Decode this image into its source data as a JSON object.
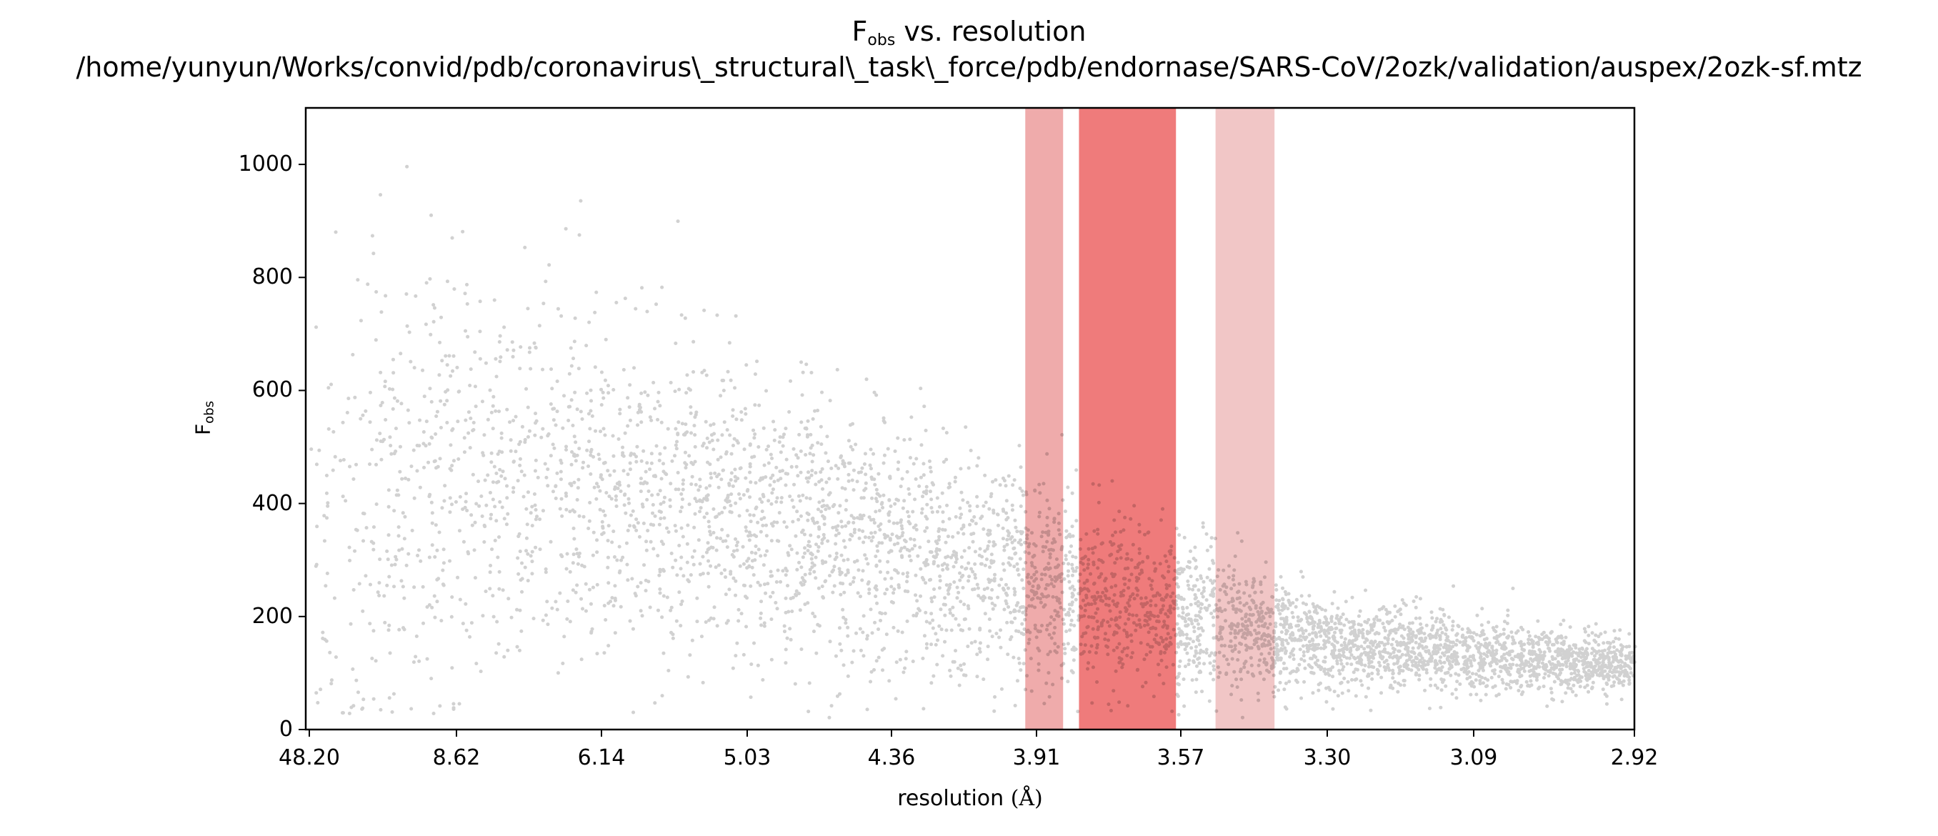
{
  "chart_data": {
    "type": "scatter",
    "title_main": "F",
    "title_main_sub": "obs",
    "title_main_rest": " vs. resolution",
    "title_path": "/home/yunyun/Works/convid/pdb/coronavirus\\_structural\\_task\\_force/pdb/endornase/SARS-CoV/2ozk/validation/auspex/2ozk-sf.mtz",
    "xlabel": "resolution ",
    "xlabel_unit": "(Å)",
    "ylabel": "F",
    "ylabel_sub": "obs",
    "x_scale": "reciprocal-squared (1/d²)",
    "x_ticks": [
      "48.20",
      "8.62",
      "6.14",
      "5.03",
      "4.36",
      "3.91",
      "3.57",
      "3.30",
      "3.09",
      "2.92"
    ],
    "y_ticks": [
      "0",
      "200",
      "400",
      "600",
      "800",
      "1000"
    ],
    "xlim": [
      48.2,
      2.92
    ],
    "ylim": [
      0,
      1100
    ],
    "grid": false,
    "point_color": "#000000",
    "ice_ring_bands": [
      {
        "from": 3.94,
        "to": 3.84,
        "color": "#e57373",
        "opacity": 0.6
      },
      {
        "from": 3.8,
        "to": 3.58,
        "color": "#ea4f4f",
        "opacity": 0.75
      },
      {
        "from": 3.5,
        "to": 3.39,
        "color": "#e8a0a0",
        "opacity": 0.6
      }
    ],
    "density_profile": [
      {
        "resolution": 48.2,
        "median": 330,
        "spread": 450
      },
      {
        "resolution": 8.62,
        "median": 460,
        "spread": 360
      },
      {
        "resolution": 6.14,
        "median": 420,
        "spread": 300
      },
      {
        "resolution": 5.03,
        "median": 380,
        "spread": 260
      },
      {
        "resolution": 4.36,
        "median": 320,
        "spread": 220
      },
      {
        "resolution": 3.91,
        "median": 260,
        "spread": 180
      },
      {
        "resolution": 3.57,
        "median": 200,
        "spread": 130
      },
      {
        "resolution": 3.3,
        "median": 155,
        "spread": 80
      },
      {
        "resolution": 3.09,
        "median": 130,
        "spread": 60
      },
      {
        "resolution": 2.92,
        "median": 115,
        "spread": 50
      }
    ]
  }
}
